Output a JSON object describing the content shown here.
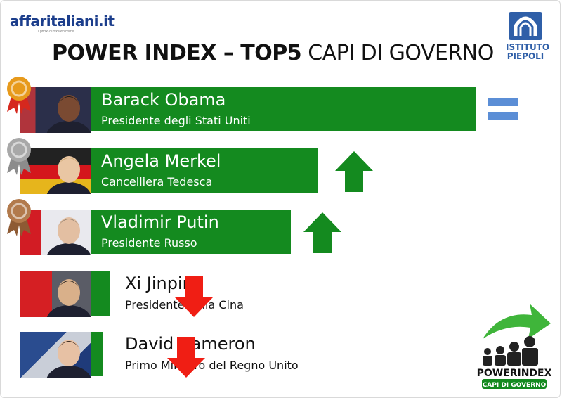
{
  "header": {
    "logo": "affaritaliani.it",
    "logo_tagline": "il primo quotidiano online",
    "title_bold": "POWER INDEX – TOP5",
    "title_light": "CAPI DI GOVERNO",
    "institute_line1": "ISTITUTO",
    "institute_line2": "PIEPOLI"
  },
  "badge": {
    "line1": "POWERINDEX",
    "line2": "CAPI DI GOVERNO"
  },
  "chart_data": {
    "type": "bar",
    "title": "POWER INDEX – TOP5 CAPI DI GOVERNO",
    "categories": [
      "Barack Obama",
      "Angela Merkel",
      "Vladimir Putin",
      "Xi Jinping",
      "David Cameron"
    ],
    "subtitles": [
      "Presidente degli Stati Uniti",
      "Cancelliera Tedesca",
      "Presidente Russo",
      "Presidente della Cina",
      "Primo Ministro del Regno Unito"
    ],
    "ranks": [
      1,
      2,
      3,
      4,
      5
    ],
    "values": [
      100,
      59,
      52,
      5,
      3
    ],
    "trends": [
      "equal",
      "up",
      "up",
      "down",
      "down"
    ],
    "medals": [
      "gold",
      "silver",
      "bronze",
      "",
      ""
    ],
    "colors": {
      "bar": "#148a1f",
      "up": "#148a1f",
      "down": "#f01e14",
      "equal": "#5b8ed6",
      "gold": "#e79a1c",
      "silver": "#a8a8a8",
      "bronze": "#b27a4c"
    }
  }
}
